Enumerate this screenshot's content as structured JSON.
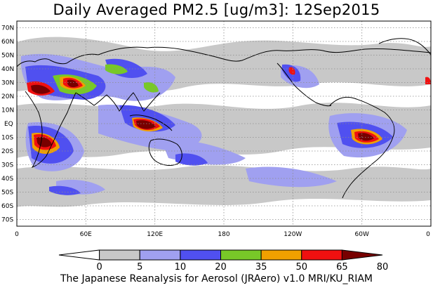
{
  "title": "Daily Averaged PM2.5 [ug/m3]: 12Sep2015",
  "footer": "The Japanese Reanalysis for Aerosol (JRAero) v1.0 MRI/KU_RIAM",
  "lat_labels": [
    "70N",
    "60N",
    "50N",
    "40N",
    "30N",
    "20N",
    "10N",
    "EQ",
    "10S",
    "20S",
    "30S",
    "40S",
    "50S",
    "60S",
    "70S"
  ],
  "lon_labels": [
    "0",
    "60E",
    "120E",
    "180",
    "120W",
    "60W",
    "0"
  ],
  "colorbar": {
    "levels": [
      "0",
      "5",
      "10",
      "20",
      "35",
      "50",
      "65",
      "80"
    ],
    "colors": [
      "#ffffff",
      "#c8c8c8",
      "#a0a0f0",
      "#5050f0",
      "#78c828",
      "#f0a000",
      "#f01010",
      "#780000"
    ]
  },
  "colors": {
    "land_outline": "#000000",
    "grid": "#8c8c8c"
  }
}
